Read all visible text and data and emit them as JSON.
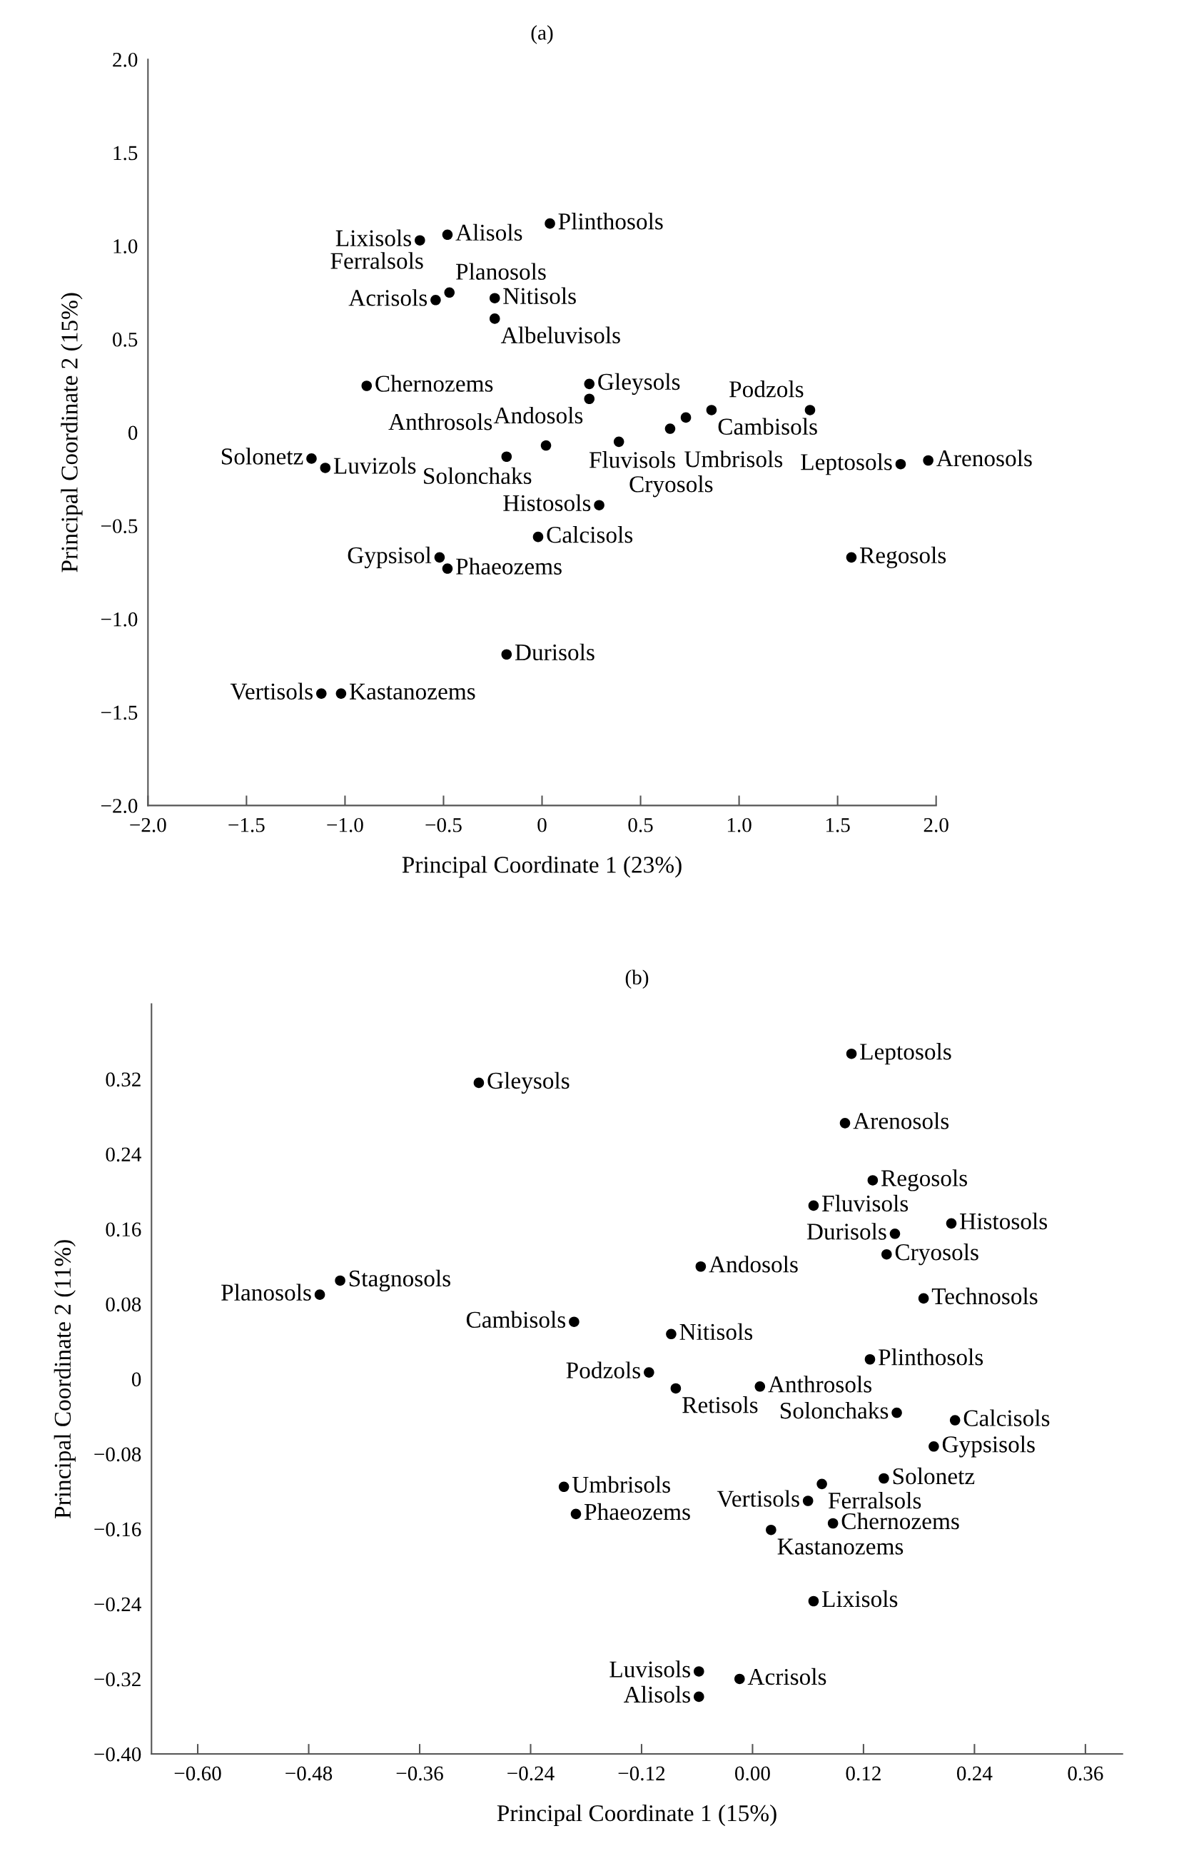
{
  "chart_data": [
    {
      "type": "scatter",
      "title": "(a)",
      "xlabel": "Principal Coordinate 1 (23%)",
      "ylabel": "Principal Coordinate 2 (15%)",
      "color": "#000000",
      "marker": "circle",
      "grid": false,
      "xlim": [
        -2.0,
        2.0
      ],
      "ylim": [
        -2.0,
        2.0
      ],
      "xticks": [
        {
          "value": -2.0,
          "label": "−2.0"
        },
        {
          "value": -1.5,
          "label": "−1.5"
        },
        {
          "value": -1.0,
          "label": "−1.0"
        },
        {
          "value": -0.5,
          "label": "−0.5"
        },
        0,
        {
          "value": 0.5,
          "label": "0.5"
        },
        {
          "value": 1.0,
          "label": "1.0"
        },
        {
          "value": 1.5,
          "label": "1.5"
        },
        {
          "value": 2.0,
          "label": "2.0"
        }
      ],
      "yticks": [
        {
          "value": -2.0,
          "label": "−2.0"
        },
        {
          "value": -1.5,
          "label": "−1.5"
        },
        {
          "value": -1.0,
          "label": "−1.0"
        },
        {
          "value": -0.5,
          "label": "−0.5"
        },
        0,
        {
          "value": 0.5,
          "label": "0.5"
        },
        {
          "value": 1.0,
          "label": "1.0"
        },
        {
          "value": 1.5,
          "label": "1.5"
        },
        {
          "value": 2.0,
          "label": "2.0"
        }
      ],
      "annotations": [
        {
          "text": "Lixisols",
          "x": -0.62,
          "y": 1.03
        },
        "Ferralsols",
        {
          "text": "Alisols",
          "x": -0.48,
          "y": 1.06
        },
        {
          "text": "Plinthosols",
          "x": 0.04,
          "y": 1.12
        },
        {
          "text": "Planosols",
          "x": -0.47,
          "y": 0.75
        },
        {
          "text": "Acrisols",
          "x": -0.54,
          "y": 0.71
        },
        {
          "text": "Nitisols",
          "x": -0.24,
          "y": 0.72
        },
        {
          "text": "Albeluvisols",
          "x": -0.24,
          "y": 0.61
        },
        {
          "text": "Chernozems",
          "x": -0.89,
          "y": 0.25
        },
        {
          "text": "Gleysols",
          "x": 0.24,
          "y": 0.26
        },
        {
          "text": "Andosols",
          "x": 0.24,
          "y": 0.18
        },
        {
          "text": "Cambisols",
          "x": 0.86,
          "y": 0.12
        },
        {
          "text": "Podzols",
          "x": 1.36,
          "y": 0.12
        },
        {
          "text": "Umbrisols",
          "x": 0.65,
          "y": 0.02
        },
        {
          "text": "Fluvisols",
          "x": 0.73,
          "y": 0.08
        },
        {
          "text": "Solonchaks",
          "x": 0.02,
          "y": -0.07
        },
        {
          "text": "Cryosols",
          "x": 0.39,
          "y": -0.05
        },
        {
          "text": "Solonetz",
          "x": -1.17,
          "y": -0.14
        },
        {
          "text": "Luvizols",
          "x": -1.1,
          "y": -0.19
        },
        {
          "text": "Anthrosols",
          "x": -0.18,
          "y": -0.13
        },
        {
          "text": "Leptosols",
          "x": 1.82,
          "y": -0.17
        },
        {
          "text": "Arenosols",
          "x": 1.96,
          "y": -0.15
        },
        {
          "text": "Histosols",
          "x": 0.29,
          "y": -0.39
        },
        {
          "text": "Gypsisol",
          "x": -0.52,
          "y": -0.67
        },
        {
          "text": "Calcisols",
          "x": -0.02,
          "y": -0.56
        },
        {
          "text": "Phaeozems",
          "x": -0.48,
          "y": -0.73
        },
        {
          "text": "Regosols",
          "x": 1.57,
          "y": -0.67
        },
        {
          "text": "Durisols",
          "x": -0.18,
          "y": -1.19
        },
        {
          "text": "Vertisols",
          "x": -1.12,
          "y": -1.4
        },
        {
          "text": "Kastanozems",
          "x": -1.02,
          "y": -1.4
        }
      ]
    },
    {
      "type": "scatter",
      "title": "(b)",
      "xlabel": "Principal Coordinate 1 (15%)",
      "ylabel": "Principal Coordinate 2 (11%)",
      "color": "#000000",
      "marker": "circle",
      "grid": false,
      "xlim": [
        -0.65,
        0.4
      ],
      "ylim": [
        -0.4,
        0.4
      ],
      "xticks": [
        {
          "value": -0.6,
          "label": "−0.60"
        },
        {
          "value": -0.48,
          "label": "−0.48"
        },
        {
          "value": -0.36,
          "label": "−0.36"
        },
        {
          "value": -0.24,
          "label": "−0.24"
        },
        {
          "value": -0.12,
          "label": "−0.12"
        },
        {
          "value": 0,
          "label": "0.00"
        },
        {
          "value": 0.12,
          "label": "0.12"
        },
        {
          "value": 0.24,
          "label": "0.24"
        },
        {
          "value": 0.36,
          "label": "0.36"
        }
      ],
      "yticks": [
        {
          "value": -0.4,
          "label": "−0.40"
        },
        {
          "value": -0.32,
          "label": "−0.32"
        },
        {
          "value": -0.24,
          "label": "−0.24"
        },
        {
          "value": -0.16,
          "label": "−0.16"
        },
        {
          "value": -0.08,
          "label": "−0.08"
        },
        0,
        {
          "value": 0.08,
          "label": "0.08"
        },
        {
          "value": 0.16,
          "label": "0.16"
        },
        {
          "value": 0.24,
          "label": "0.24"
        },
        {
          "value": 0.32,
          "label": "0.32"
        }
      ],
      "annotations": [
        {
          "text": "Leptosols",
          "x": 0.107,
          "y": 0.347
        },
        {
          "text": "Gleysols",
          "x": -0.296,
          "y": 0.316
        },
        {
          "text": "Arenosols",
          "x": 0.1,
          "y": 0.273
        },
        {
          "text": "Regosols",
          "x": 0.13,
          "y": 0.212
        },
        {
          "text": "Fluvisols",
          "x": 0.066,
          "y": 0.185
        },
        {
          "text": "Histosols",
          "x": 0.215,
          "y": 0.166
        },
        {
          "text": "Durisols",
          "x": 0.154,
          "y": 0.155
        },
        {
          "text": "Cryosols",
          "x": 0.145,
          "y": 0.133
        },
        {
          "text": "Andosols",
          "x": -0.056,
          "y": 0.12
        },
        {
          "text": "Technosols",
          "x": 0.185,
          "y": 0.086
        },
        {
          "text": "Planosols",
          "x": -0.468,
          "y": 0.09
        },
        {
          "text": "Stagnosols",
          "x": -0.446,
          "y": 0.105
        },
        {
          "text": "Cambisols",
          "x": -0.193,
          "y": 0.061
        },
        {
          "text": "Nitisols",
          "x": -0.088,
          "y": 0.048
        },
        {
          "text": "Plinthosols",
          "x": 0.127,
          "y": 0.021
        },
        {
          "text": "Podzols",
          "x": -0.112,
          "y": 0.007
        },
        {
          "text": "Retisols",
          "x": -0.083,
          "y": -0.01
        },
        {
          "text": "Anthrosols",
          "x": 0.008,
          "y": -0.008
        },
        {
          "text": "Solonchaks",
          "x": 0.156,
          "y": -0.036
        },
        {
          "text": "Calcisols",
          "x": 0.219,
          "y": -0.044
        },
        {
          "text": "Gypsisols",
          "x": 0.196,
          "y": -0.072
        },
        {
          "text": "Solonetz",
          "x": 0.142,
          "y": -0.106
        },
        {
          "text": "Ferralsols",
          "x": 0.075,
          "y": -0.112
        },
        {
          "text": "Umbrisols",
          "x": -0.204,
          "y": -0.115
        },
        {
          "text": "Phaeozems",
          "x": -0.191,
          "y": -0.144
        },
        {
          "text": "Vertisols",
          "x": 0.06,
          "y": -0.13
        },
        {
          "text": "Kastanozems",
          "x": 0.02,
          "y": -0.161
        },
        {
          "text": "Chernozems",
          "x": 0.087,
          "y": -0.154
        },
        {
          "text": "Lixisols",
          "x": 0.066,
          "y": -0.237
        },
        {
          "text": "Luvisols",
          "x": -0.058,
          "y": -0.312
        },
        {
          "text": "Acrisols",
          "x": -0.014,
          "y": -0.32
        },
        {
          "text": "Alisols",
          "x": -0.058,
          "y": -0.339
        }
      ]
    }
  ]
}
